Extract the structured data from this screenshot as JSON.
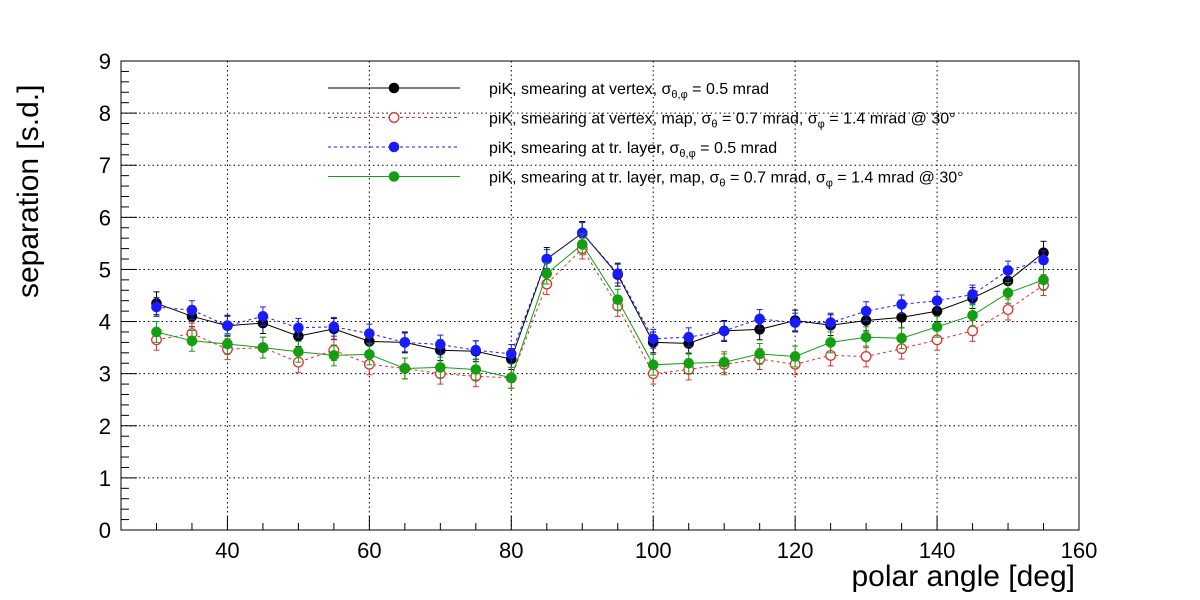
{
  "chart_data": {
    "type": "scatter",
    "title": "",
    "xlabel": "polar angle [deg]",
    "ylabel": "separation [s.d.]",
    "xlim": [
      25,
      160
    ],
    "ylim": [
      0,
      9
    ],
    "x_ticks": [
      40,
      60,
      80,
      100,
      120,
      140,
      160
    ],
    "y_ticks": [
      0,
      1,
      2,
      3,
      4,
      5,
      6,
      7,
      8,
      9
    ],
    "grid": true,
    "legend_position": "top-center",
    "x": [
      30,
      35,
      40,
      45,
      50,
      55,
      60,
      65,
      70,
      75,
      80,
      85,
      90,
      95,
      100,
      105,
      110,
      115,
      120,
      125,
      130,
      135,
      140,
      145,
      150,
      155
    ],
    "series": [
      {
        "legend": {
          "text": "piK, smearing at vertex, ",
          "sigma_sub": "θ,φ",
          "tail": " = 0.5 mrad"
        },
        "color": "#000000",
        "marker": "filled-circle",
        "line": "solid",
        "values": [
          4.35,
          4.1,
          3.92,
          3.97,
          3.72,
          3.86,
          3.62,
          3.6,
          3.45,
          3.43,
          3.28,
          5.2,
          5.7,
          4.9,
          3.6,
          3.58,
          3.82,
          3.85,
          4.02,
          3.93,
          4.02,
          4.08,
          4.2,
          4.45,
          4.78,
          5.32
        ],
        "errors": [
          0.22,
          0.2,
          0.2,
          0.2,
          0.2,
          0.2,
          0.2,
          0.2,
          0.2,
          0.2,
          0.2,
          0.22,
          0.22,
          0.22,
          0.2,
          0.2,
          0.2,
          0.2,
          0.2,
          0.2,
          0.2,
          0.2,
          0.2,
          0.2,
          0.22,
          0.22
        ]
      },
      {
        "legend": {
          "text": "piK, smearing at vertex, map, ",
          "sigma_sub": "θ",
          "tail": " = 0.7 mrad,  ",
          "sigma2_sub": "φ",
          "tail2": " = 1.4 mrad @ 30°"
        },
        "color": "#dd3333",
        "marker": "open-circle",
        "line": "dashed",
        "values": [
          3.65,
          3.77,
          3.47,
          3.5,
          3.22,
          3.45,
          3.18,
          3.1,
          3.0,
          2.95,
          2.92,
          4.72,
          5.4,
          4.3,
          3.0,
          3.08,
          3.18,
          3.28,
          3.18,
          3.35,
          3.33,
          3.48,
          3.65,
          3.82,
          4.23,
          4.7
        ],
        "errors": [
          0.2,
          0.2,
          0.2,
          0.2,
          0.2,
          0.2,
          0.2,
          0.2,
          0.2,
          0.2,
          0.2,
          0.2,
          0.2,
          0.2,
          0.2,
          0.2,
          0.2,
          0.2,
          0.2,
          0.2,
          0.2,
          0.2,
          0.2,
          0.2,
          0.2,
          0.2
        ]
      },
      {
        "legend": {
          "text": "piK, smearing at tr. layer, ",
          "sigma_sub": "θ,φ",
          "tail": " = 0.5 mrad"
        },
        "color": "#1a1aff",
        "marker": "filled-circle",
        "line": "dashed",
        "values": [
          4.28,
          4.22,
          3.92,
          4.1,
          3.88,
          3.9,
          3.77,
          3.6,
          3.56,
          3.45,
          3.38,
          5.2,
          5.7,
          4.92,
          3.67,
          3.7,
          3.82,
          4.05,
          3.98,
          3.98,
          4.2,
          4.33,
          4.4,
          4.52,
          4.98,
          5.18
        ],
        "errors": [
          0.18,
          0.18,
          0.18,
          0.18,
          0.18,
          0.18,
          0.18,
          0.18,
          0.18,
          0.18,
          0.18,
          0.18,
          0.2,
          0.18,
          0.18,
          0.18,
          0.18,
          0.18,
          0.18,
          0.18,
          0.18,
          0.18,
          0.18,
          0.18,
          0.18,
          0.18
        ]
      },
      {
        "legend": {
          "text": "piK, smearing at tr. layer, map, ",
          "sigma_sub": "θ",
          "tail": " = 0.7 mrad,  ",
          "sigma2_sub": "φ",
          "tail2": " = 1.4 mrad @ 30°"
        },
        "color": "#11a011",
        "marker": "filled-circle",
        "line": "solid",
        "values": [
          3.8,
          3.63,
          3.57,
          3.5,
          3.42,
          3.35,
          3.37,
          3.1,
          3.12,
          3.08,
          2.92,
          4.92,
          5.48,
          4.42,
          3.17,
          3.2,
          3.22,
          3.38,
          3.33,
          3.6,
          3.7,
          3.68,
          3.9,
          4.12,
          4.55,
          4.8
        ],
        "errors": [
          0.2,
          0.2,
          0.2,
          0.2,
          0.2,
          0.2,
          0.2,
          0.2,
          0.2,
          0.2,
          0.2,
          0.2,
          0.2,
          0.2,
          0.2,
          0.2,
          0.2,
          0.2,
          0.2,
          0.2,
          0.2,
          0.2,
          0.2,
          0.2,
          0.2,
          0.2
        ]
      }
    ]
  }
}
